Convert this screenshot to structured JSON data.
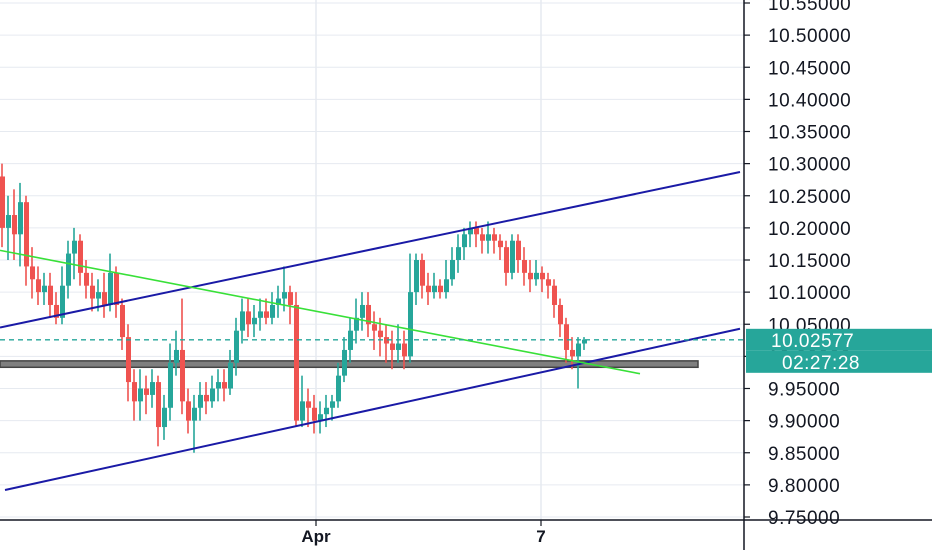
{
  "chart_data": {
    "type": "candlestick",
    "price_axis": {
      "ticks": [
        "10.55000",
        "10.50000",
        "10.45000",
        "10.40000",
        "10.35000",
        "10.30000",
        "10.25000",
        "10.20000",
        "10.15000",
        "10.10000",
        "10.05000",
        "10.00000",
        "9.95000",
        "9.90000",
        "9.85000",
        "9.80000",
        "9.75000"
      ],
      "ylim": [
        9.745,
        10.56
      ]
    },
    "time_axis": {
      "ticks": [
        "Apr",
        "7"
      ]
    },
    "last_price": {
      "value": "10.02577",
      "countdown": "02:27:28",
      "color": "#26a69a"
    },
    "colors": {
      "up": "#26a69a",
      "down": "#ef5350",
      "channel": "#1a1aa6",
      "trendline": "#38e038",
      "grid": "#e6eaf0",
      "zone": "#7f7f7f"
    },
    "channel_upper": [
      [
        0,
        10.045
      ],
      [
        740,
        10.287
      ]
    ],
    "channel_lower": [
      [
        5,
        9.792
      ],
      [
        740,
        10.043
      ]
    ],
    "trendline": [
      [
        0,
        10.165
      ],
      [
        640,
        9.973
      ]
    ],
    "zone": [
      9.993,
      9.983
    ],
    "candles": [
      [
        0,
        10.28,
        10.2,
        10.3,
        10.17
      ],
      [
        6,
        10.2,
        10.22,
        10.25,
        10.15
      ],
      [
        12,
        10.22,
        10.19,
        10.26,
        10.15
      ],
      [
        18,
        10.19,
        10.24,
        10.27,
        10.14
      ],
      [
        24,
        10.24,
        10.14,
        10.25,
        10.11
      ],
      [
        30,
        10.14,
        10.12,
        10.17,
        10.09
      ],
      [
        36,
        10.12,
        10.1,
        10.14,
        10.08
      ],
      [
        42,
        10.1,
        10.11,
        10.13,
        10.08
      ],
      [
        48,
        10.11,
        10.08,
        10.13,
        10.06
      ],
      [
        54,
        10.08,
        10.06,
        10.1,
        10.05
      ],
      [
        60,
        10.06,
        10.11,
        10.14,
        10.05
      ],
      [
        66,
        10.11,
        10.16,
        10.18,
        10.09
      ],
      [
        72,
        10.16,
        10.18,
        10.2,
        10.12
      ],
      [
        78,
        10.18,
        10.13,
        10.19,
        10.11
      ],
      [
        84,
        10.13,
        10.11,
        10.15,
        10.09
      ],
      [
        90,
        10.11,
        10.09,
        10.13,
        10.07
      ],
      [
        96,
        10.09,
        10.1,
        10.12,
        10.07
      ],
      [
        102,
        10.1,
        10.08,
        10.13,
        10.06
      ],
      [
        108,
        10.08,
        10.13,
        10.16,
        10.07
      ],
      [
        114,
        10.13,
        10.08,
        10.14,
        10.06
      ],
      [
        120,
        10.08,
        10.03,
        10.09,
        10.01
      ],
      [
        126,
        10.03,
        9.96,
        10.05,
        9.93
      ],
      [
        132,
        9.96,
        9.93,
        9.98,
        9.9
      ],
      [
        138,
        9.93,
        9.95,
        9.98,
        9.9
      ],
      [
        144,
        9.95,
        9.94,
        9.97,
        9.91
      ],
      [
        150,
        9.94,
        9.96,
        9.98,
        9.92
      ],
      [
        156,
        9.96,
        9.89,
        9.97,
        9.86
      ],
      [
        162,
        9.89,
        9.92,
        9.94,
        9.87
      ],
      [
        168,
        9.92,
        9.99,
        10.02,
        9.9
      ],
      [
        174,
        9.99,
        10.01,
        10.04,
        9.97
      ],
      [
        180,
        10.01,
        9.93,
        10.09,
        9.91
      ],
      [
        186,
        9.93,
        9.9,
        9.95,
        9.88
      ],
      [
        192,
        9.9,
        9.92,
        9.94,
        9.85
      ],
      [
        198,
        9.92,
        9.94,
        9.96,
        9.9
      ],
      [
        204,
        9.94,
        9.93,
        9.96,
        9.91
      ],
      [
        210,
        9.93,
        9.95,
        9.97,
        9.92
      ],
      [
        216,
        9.95,
        9.96,
        9.98,
        9.93
      ],
      [
        222,
        9.96,
        9.95,
        9.98,
        9.93
      ],
      [
        228,
        9.95,
        9.99,
        10.01,
        9.94
      ],
      [
        234,
        9.99,
        10.04,
        10.06,
        9.97
      ],
      [
        240,
        10.04,
        10.07,
        10.09,
        10.02
      ],
      [
        246,
        10.07,
        10.05,
        10.09,
        10.03
      ],
      [
        252,
        10.05,
        10.06,
        10.08,
        10.03
      ],
      [
        258,
        10.06,
        10.07,
        10.09,
        10.04
      ],
      [
        264,
        10.07,
        10.06,
        10.09,
        10.05
      ],
      [
        270,
        10.06,
        10.08,
        10.1,
        10.05
      ],
      [
        276,
        10.08,
        10.09,
        10.11,
        10.06
      ],
      [
        282,
        10.09,
        10.1,
        10.14,
        10.07
      ],
      [
        288,
        10.1,
        10.08,
        10.11,
        10.05
      ],
      [
        294,
        10.08,
        9.9,
        10.1,
        9.89
      ],
      [
        300,
        9.9,
        9.93,
        9.97,
        9.89
      ],
      [
        306,
        9.93,
        9.92,
        9.95,
        9.89
      ],
      [
        312,
        9.92,
        9.9,
        9.94,
        9.88
      ],
      [
        318,
        9.9,
        9.91,
        9.93,
        9.88
      ],
      [
        324,
        9.91,
        9.92,
        9.94,
        9.89
      ],
      [
        330,
        9.92,
        9.93,
        9.94,
        9.9
      ],
      [
        336,
        9.93,
        9.97,
        9.99,
        9.92
      ],
      [
        342,
        9.97,
        10.01,
        10.03,
        9.96
      ],
      [
        348,
        10.01,
        10.04,
        10.06,
        9.99
      ],
      [
        354,
        10.04,
        10.06,
        10.09,
        10.02
      ],
      [
        360,
        10.06,
        10.08,
        10.1,
        10.04
      ],
      [
        366,
        10.08,
        10.05,
        10.1,
        10.03
      ],
      [
        372,
        10.05,
        10.04,
        10.07,
        10.01
      ],
      [
        378,
        10.04,
        10.03,
        10.06,
        10.0
      ],
      [
        384,
        10.03,
        10.02,
        10.05,
        9.99
      ],
      [
        390,
        10.02,
        10.01,
        10.04,
        9.98
      ],
      [
        396,
        10.01,
        10.02,
        10.05,
        9.99
      ],
      [
        402,
        10.02,
        10.0,
        10.04,
        9.98
      ],
      [
        408,
        10.0,
        10.1,
        10.16,
        9.99
      ],
      [
        414,
        10.1,
        10.15,
        10.16,
        10.08
      ],
      [
        420,
        10.15,
        10.11,
        10.16,
        10.09
      ],
      [
        426,
        10.11,
        10.1,
        10.13,
        10.08
      ],
      [
        432,
        10.1,
        10.11,
        10.13,
        10.09
      ],
      [
        438,
        10.11,
        10.1,
        10.12,
        10.09
      ],
      [
        444,
        10.1,
        10.12,
        10.15,
        10.09
      ],
      [
        450,
        10.12,
        10.15,
        10.17,
        10.11
      ],
      [
        456,
        10.15,
        10.17,
        10.19,
        10.13
      ],
      [
        462,
        10.17,
        10.19,
        10.2,
        10.15
      ],
      [
        468,
        10.19,
        10.2,
        10.21,
        10.17
      ],
      [
        474,
        10.2,
        10.19,
        10.21,
        10.17
      ],
      [
        480,
        10.19,
        10.18,
        10.2,
        10.16
      ],
      [
        486,
        10.18,
        10.19,
        10.21,
        10.16
      ],
      [
        492,
        10.19,
        10.18,
        10.2,
        10.16
      ],
      [
        498,
        10.18,
        10.17,
        10.19,
        10.15
      ],
      [
        504,
        10.17,
        10.13,
        10.18,
        10.11
      ],
      [
        510,
        10.13,
        10.18,
        10.19,
        10.12
      ],
      [
        516,
        10.18,
        10.15,
        10.19,
        10.13
      ],
      [
        522,
        10.15,
        10.13,
        10.17,
        10.11
      ],
      [
        528,
        10.13,
        10.12,
        10.15,
        10.1
      ],
      [
        534,
        10.12,
        10.13,
        10.15,
        10.11
      ],
      [
        540,
        10.13,
        10.12,
        10.14,
        10.1
      ],
      [
        546,
        10.12,
        10.11,
        10.13,
        10.09
      ],
      [
        552,
        10.11,
        10.08,
        10.12,
        10.06
      ],
      [
        558,
        10.08,
        10.05,
        10.09,
        10.03
      ],
      [
        564,
        10.05,
        10.01,
        10.06,
        9.99
      ],
      [
        570,
        10.01,
        10.0,
        10.03,
        9.98
      ],
      [
        576,
        10.0,
        10.02,
        10.03,
        9.95
      ],
      [
        582,
        10.02,
        10.026,
        10.03,
        10.01
      ]
    ]
  }
}
